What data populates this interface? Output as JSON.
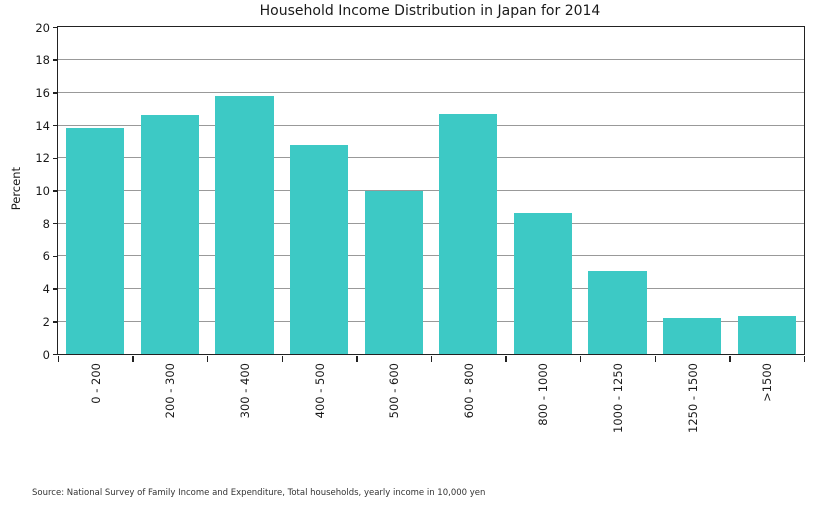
{
  "chart_data": {
    "type": "bar",
    "title": "Household Income Distribution in Japan for 2014",
    "xlabel": "",
    "ylabel": "Percent",
    "categories": [
      "0 - 200",
      "200 - 300",
      "300 - 400",
      "400 - 500",
      "500 - 600",
      "600 - 800",
      "800 - 1000",
      "1000 - 1250",
      "1250 - 1500",
      ">1500"
    ],
    "values": [
      13.8,
      14.6,
      15.8,
      12.8,
      10.0,
      14.7,
      8.6,
      5.1,
      2.2,
      2.3
    ],
    "ylim": [
      0,
      20
    ],
    "yticks": [
      0,
      2,
      4,
      6,
      8,
      10,
      12,
      14,
      16,
      18,
      20
    ],
    "grid": true,
    "legend": "none",
    "bar_color": "#3dc9c5",
    "grid_color": "#999999",
    "axis_color": "#222222",
    "text_color": "#1a1a1a"
  },
  "source_note": "Source: National Survey of Family Income and Expenditure, Total households, yearly income in 10,000 yen"
}
